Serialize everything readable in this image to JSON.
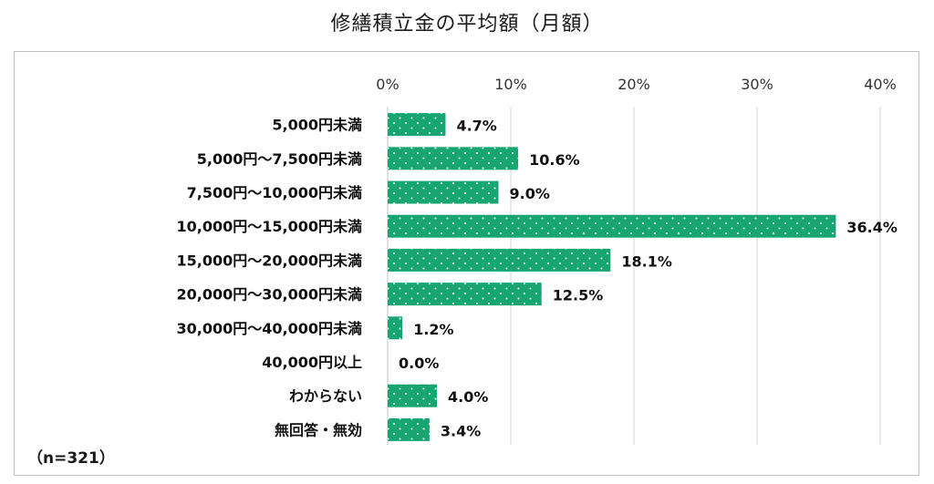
{
  "title": "修繕積立金の平均額（月額）",
  "sample_note": "（n=321）",
  "chart_data": {
    "type": "bar",
    "orientation": "horizontal",
    "title": "修繕積立金の平均額（月額）",
    "xlim": [
      0,
      40
    ],
    "x_ticks": [
      "0%",
      "10%",
      "20%",
      "30%",
      "40%"
    ],
    "categories": [
      "5,000円未満",
      "5,000円～7,500円未満",
      "7,500円～10,000円未満",
      "10,000円～15,000円未満",
      "15,000円～20,000円未満",
      "20,000円～30,000円未満",
      "30,000円～40,000円未満",
      "40,000円以上",
      "わからない",
      "無回答・無効"
    ],
    "values": [
      4.7,
      10.6,
      9.0,
      36.4,
      18.1,
      12.5,
      1.2,
      0.0,
      4.0,
      3.4
    ],
    "value_labels": [
      "4.7%",
      "10.6%",
      "9.0%",
      "36.4%",
      "18.1%",
      "12.5%",
      "1.2%",
      "0.0%",
      "4.0%",
      "3.4%"
    ],
    "bar_color": "#17a672",
    "bar_pattern": "white dots",
    "grid": true
  }
}
